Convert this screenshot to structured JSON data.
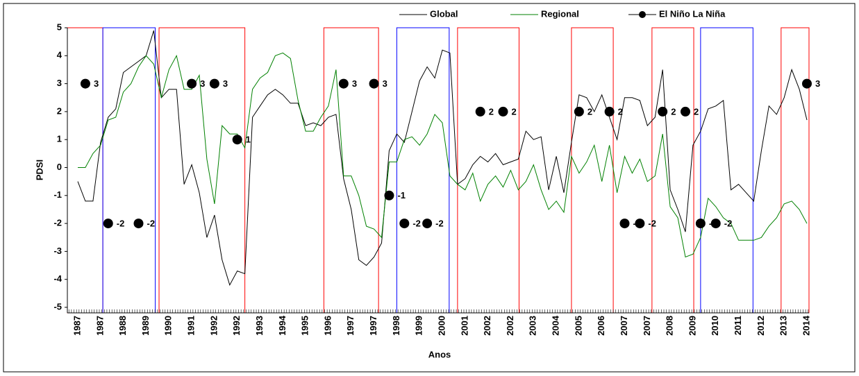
{
  "chart_data": {
    "type": "line",
    "x_label": "Anos",
    "y_label": "PDSI",
    "categories": [
      "1987",
      null,
      null,
      "1987",
      null,
      null,
      "1988",
      null,
      null,
      "1989",
      null,
      null,
      "1990",
      null,
      null,
      "1991",
      null,
      null,
      "1992",
      null,
      null,
      "1992",
      null,
      null,
      "1993",
      null,
      null,
      "1994",
      null,
      null,
      "1995",
      null,
      null,
      "1996",
      null,
      null,
      "1997",
      null,
      null,
      "1997",
      null,
      null,
      "1998",
      null,
      null,
      "1999",
      null,
      null,
      "2000",
      null,
      null,
      "2001",
      null,
      null,
      "2002",
      null,
      null,
      "2002",
      null,
      null,
      "2003",
      null,
      null,
      "2004",
      null,
      null,
      "2005",
      null,
      null,
      "2006",
      null,
      null,
      "2007",
      null,
      null,
      "2007",
      null,
      null,
      "2008",
      null,
      null,
      "2009",
      null,
      null,
      "2010",
      null,
      null,
      "2011",
      null,
      null,
      "2012",
      null,
      null,
      "2013",
      null,
      null,
      "2014"
    ],
    "series": [
      {
        "name": "Global",
        "color": "#000000",
        "values": [
          -0.5,
          -1.2,
          -1.2,
          0.9,
          1.8,
          2.1,
          3.4,
          3.6,
          3.8,
          4.0,
          4.9,
          2.5,
          2.8,
          2.8,
          -0.6,
          0.1,
          -0.9,
          -2.5,
          -1.7,
          -3.3,
          -4.2,
          -3.7,
          -3.8,
          1.8,
          2.2,
          2.6,
          2.8,
          2.6,
          2.3,
          2.3,
          1.5,
          1.6,
          1.5,
          1.8,
          1.9,
          -0.4,
          -1.5,
          -3.3,
          -3.5,
          -3.2,
          -2.7,
          0.6,
          1.2,
          0.9,
          2.0,
          3.1,
          3.6,
          3.2,
          4.2,
          4.1,
          -0.6,
          -0.4,
          0.1,
          0.4,
          0.2,
          0.5,
          0.1,
          0.2,
          0.3,
          1.3,
          1.0,
          1.1,
          -0.8,
          0.4,
          -0.9,
          0.9,
          2.6,
          2.5,
          2.0,
          2.6,
          1.8,
          1.0,
          2.5,
          2.5,
          2.4,
          1.5,
          1.8,
          3.5,
          -0.8,
          -1.5,
          -2.3,
          0.8,
          1.3,
          2.1,
          2.2,
          2.4,
          -0.8,
          -0.6,
          -0.9,
          -1.2,
          0.6,
          2.2,
          1.9,
          2.5,
          3.5,
          2.8,
          1.7
        ]
      },
      {
        "name": "Regional",
        "color": "#008000",
        "values": [
          0.0,
          0.0,
          0.5,
          0.8,
          1.7,
          1.8,
          2.7,
          3.0,
          3.6,
          4.0,
          3.7,
          2.5,
          3.5,
          4.0,
          2.8,
          2.8,
          3.3,
          0.3,
          -1.3,
          1.5,
          1.2,
          1.2,
          0.7,
          2.8,
          3.2,
          3.4,
          4.0,
          4.1,
          3.9,
          2.4,
          1.3,
          1.3,
          1.8,
          2.2,
          3.5,
          -0.3,
          -0.3,
          -1.0,
          -2.1,
          -2.2,
          -2.5,
          0.2,
          0.2,
          1.0,
          1.1,
          0.8,
          1.2,
          1.9,
          1.6,
          -0.3,
          -0.6,
          -0.8,
          -0.2,
          -1.2,
          -0.6,
          -0.3,
          -0.7,
          -0.1,
          -0.8,
          -0.5,
          0.1,
          -0.8,
          -1.5,
          -1.2,
          -1.6,
          0.4,
          -0.2,
          0.2,
          0.8,
          -0.5,
          0.8,
          -0.9,
          0.4,
          -0.2,
          0.3,
          -0.5,
          -0.3,
          1.2,
          -1.4,
          -1.8,
          -3.2,
          -3.1,
          -2.5,
          -1.1,
          -1.4,
          -1.8,
          -2.0,
          -2.6,
          -2.6,
          -2.6,
          -2.5,
          -2.1,
          -1.8,
          -1.3,
          -1.2,
          -1.5,
          -2.0
        ]
      },
      {
        "name": "El Niño La Niña",
        "color": "#000000",
        "marker": "circle",
        "line": false,
        "data_labels": true,
        "values": [
          null,
          3,
          null,
          null,
          -2,
          null,
          null,
          null,
          -2,
          null,
          null,
          null,
          null,
          null,
          null,
          3,
          null,
          null,
          3,
          null,
          null,
          1,
          null,
          null,
          null,
          null,
          null,
          null,
          null,
          null,
          null,
          null,
          null,
          null,
          null,
          3,
          null,
          null,
          null,
          3,
          null,
          -1,
          null,
          -2,
          null,
          null,
          -2,
          null,
          null,
          null,
          null,
          null,
          null,
          2,
          null,
          null,
          2,
          null,
          null,
          null,
          null,
          null,
          null,
          null,
          null,
          null,
          2,
          null,
          null,
          null,
          2,
          null,
          -2,
          null,
          -2,
          null,
          null,
          2,
          null,
          null,
          2,
          null,
          -2,
          null,
          -2,
          null,
          null,
          null,
          null,
          null,
          null,
          null,
          null,
          null,
          null,
          null,
          3
        ]
      }
    ],
    "periods": [
      {
        "start": -1.4,
        "end": 3.3,
        "color": "#ff0000"
      },
      {
        "start": 3.3,
        "end": 10.2,
        "color": "#0000ff"
      },
      {
        "start": 10.7,
        "end": 22.0,
        "color": "#ff0000"
      },
      {
        "start": 32.4,
        "end": 39.6,
        "color": "#ff0000"
      },
      {
        "start": 42.0,
        "end": 48.9,
        "color": "#0000ff"
      },
      {
        "start": 50.0,
        "end": 58.1,
        "color": "#ff0000"
      },
      {
        "start": 65.0,
        "end": 70.5,
        "color": "#ff0000"
      },
      {
        "start": 75.6,
        "end": 81.1,
        "color": "#ff0000"
      },
      {
        "start": 82.0,
        "end": 88.9,
        "color": "#0000ff"
      },
      {
        "start": 92.6,
        "end": 96.3,
        "color": "#ff0000"
      }
    ],
    "ylim": [
      -5,
      5
    ],
    "yticks": [
      -5,
      -4,
      -3,
      -2,
      -1,
      0,
      1,
      2,
      3,
      4,
      5
    ],
    "grid": false,
    "legend": "top"
  }
}
